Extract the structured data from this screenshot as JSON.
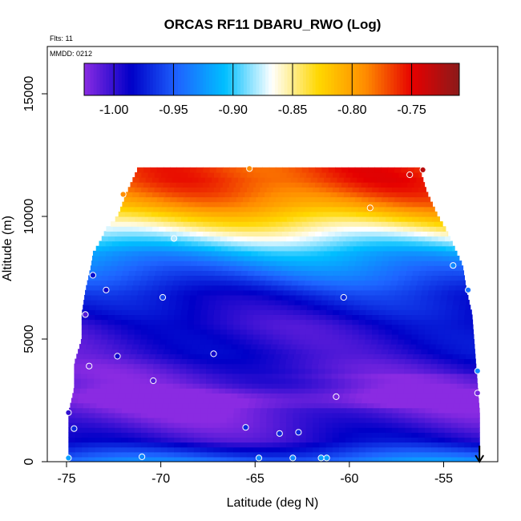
{
  "chart_data": {
    "type": "heatmap",
    "title": "ORCAS RF11 DBARU_RWO (Log)",
    "annotations": {
      "flights": "Flts: 11",
      "mmdd": "MMDD: 0212"
    },
    "xlabel": "Latitude (deg N)",
    "ylabel": "Altitude (m)",
    "xlim": [
      -75.5,
      -52.1
    ],
    "ylim": [
      0,
      16800
    ],
    "x_ticks": [
      -75,
      -70,
      -65,
      -60,
      -55
    ],
    "x_tick_labels": [
      "-75",
      "-70",
      "-65",
      "-60",
      "-55"
    ],
    "y_ticks": [
      0,
      5000,
      10000,
      15000
    ],
    "y_tick_labels": [
      "0",
      "5000",
      "10000",
      "15000"
    ],
    "colorbar": {
      "range": [
        -1.025,
        -0.71
      ],
      "ticks": [
        -1.0,
        -0.95,
        -0.9,
        -0.85,
        -0.8,
        -0.75
      ],
      "tick_labels": [
        "-1.00",
        "-0.95",
        "-0.90",
        "-0.85",
        "-0.80",
        "-0.75"
      ],
      "colors": [
        "#8a2be2",
        "#0000c8",
        "#1e64ff",
        "#00bfff",
        "#ffffff",
        "#ffd700",
        "#ff8c00",
        "#e60000",
        "#8b1a1a"
      ]
    },
    "field": {
      "lat_range": [
        -74.9,
        -53.1
      ],
      "alt_bins_m": [
        0,
        400,
        900,
        1400,
        2000,
        2600,
        3200,
        3800,
        4400,
        5000,
        5600,
        6200,
        6800,
        7400,
        8000,
        8500,
        9000,
        9500,
        10000,
        10500,
        11000,
        11500,
        12000
      ],
      "value_at_bin": [
        -0.93,
        -0.96,
        -0.99,
        -1.0,
        -1.01,
        -1.02,
        -1.0,
        -1.0,
        -0.99,
        -0.99,
        -0.99,
        -0.98,
        -0.97,
        -0.95,
        -0.93,
        -0.91,
        -0.88,
        -0.85,
        -0.82,
        -0.79,
        -0.77,
        -0.76,
        -0.76
      ]
    },
    "coverage_envelope": {
      "lat_west": [
        -74.9,
        -74.9,
        -74.6,
        -74.6,
        -74.2,
        -74.2,
        -74.0,
        -73.7,
        -73.6,
        -73.2,
        -72.9,
        -72.3,
        -71.8,
        -71.2
      ],
      "lat_east": [
        -53.1,
        -53.1,
        -53.2,
        -53.3,
        -53.4,
        -53.5,
        -53.8,
        -54.0,
        -54.3,
        -54.6,
        -54.9,
        -55.3,
        -55.9,
        -56.3
      ],
      "alt_m": [
        0,
        2000,
        3000,
        4000,
        5000,
        6000,
        7000,
        8000,
        8500,
        9000,
        9500,
        10000,
        11000,
        12000
      ]
    },
    "sample_points": [
      {
        "lat": -74.9,
        "alt": 150,
        "value": -0.92
      },
      {
        "lat": -74.9,
        "alt": 2000,
        "value": -1.0
      },
      {
        "lat": -74.6,
        "alt": 1350,
        "value": -0.97
      },
      {
        "lat": -74.0,
        "alt": 6000,
        "value": -1.01
      },
      {
        "lat": -73.8,
        "alt": 3900,
        "value": -1.02
      },
      {
        "lat": -73.6,
        "alt": 7600,
        "value": -0.98
      },
      {
        "lat": -72.9,
        "alt": 7000,
        "value": -0.99
      },
      {
        "lat": -72.3,
        "alt": 4300,
        "value": -0.99
      },
      {
        "lat": -72.0,
        "alt": 10900,
        "value": -0.79
      },
      {
        "lat": -71.0,
        "alt": 200,
        "value": -0.93
      },
      {
        "lat": -70.4,
        "alt": 3300,
        "value": -1.01
      },
      {
        "lat": -69.9,
        "alt": 6700,
        "value": -0.96
      },
      {
        "lat": -69.3,
        "alt": 9100,
        "value": -0.88
      },
      {
        "lat": -67.2,
        "alt": 4400,
        "value": -0.99
      },
      {
        "lat": -65.5,
        "alt": 1400,
        "value": -0.97
      },
      {
        "lat": -65.3,
        "alt": 11950,
        "value": -0.79
      },
      {
        "lat": -64.8,
        "alt": 150,
        "value": -0.93
      },
      {
        "lat": -63.7,
        "alt": 1150,
        "value": -0.97
      },
      {
        "lat": -63.0,
        "alt": 150,
        "value": -0.93
      },
      {
        "lat": -62.7,
        "alt": 1200,
        "value": -0.97
      },
      {
        "lat": -61.5,
        "alt": 150,
        "value": -0.92
      },
      {
        "lat": -61.2,
        "alt": 150,
        "value": -0.92
      },
      {
        "lat": -60.7,
        "alt": 2650,
        "value": -1.02
      },
      {
        "lat": -60.3,
        "alt": 6700,
        "value": -0.97
      },
      {
        "lat": -58.9,
        "alt": 10350,
        "value": -0.79
      },
      {
        "lat": -56.8,
        "alt": 11700,
        "value": -0.74
      },
      {
        "lat": -56.1,
        "alt": 11900,
        "value": -0.73
      },
      {
        "lat": -54.5,
        "alt": 8000,
        "value": -0.93
      },
      {
        "lat": -53.7,
        "alt": 7000,
        "value": -0.94
      },
      {
        "lat": -53.2,
        "alt": 3700,
        "value": -0.93
      },
      {
        "lat": -53.2,
        "alt": 2800,
        "value": -1.02
      }
    ],
    "marker_arrow": {
      "lat": -53.1,
      "direction": "down"
    },
    "grid": false,
    "legend": "colorbar inside top of plot"
  }
}
